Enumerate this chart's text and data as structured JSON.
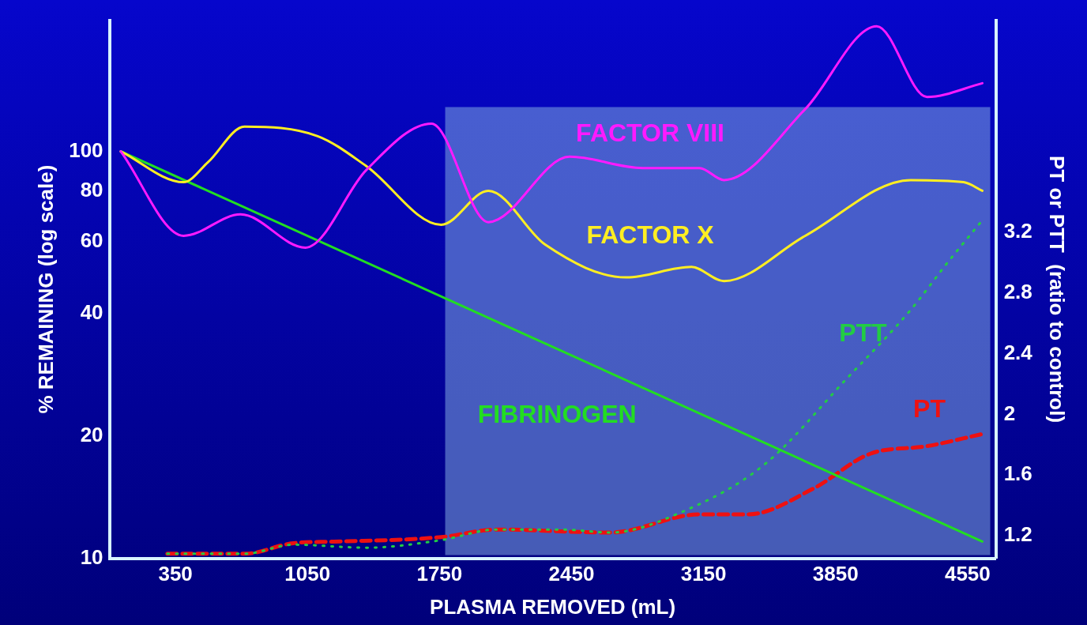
{
  "chart_data": {
    "type": "line",
    "xlabel": "PLASMA REMOVED (mL)",
    "ylabel": "% REMAINING (log scale)",
    "y2label": "PT or PTT  (ratio to control)",
    "xlim": [
      0,
      4700
    ],
    "xticks": [
      350,
      1050,
      1750,
      2450,
      3150,
      3850,
      4550
    ],
    "ylim": [
      10,
      210
    ],
    "yticks": [
      10,
      20,
      40,
      60,
      80,
      100
    ],
    "log": "y",
    "y2lim": [
      1.05,
      4.6
    ],
    "y2ticks": [
      1.2,
      1.6,
      2.0,
      2.4,
      2.8,
      3.2
    ],
    "grid": false,
    "legend": false,
    "marker": "none",
    "bands": [
      {
        "axis": "x",
        "from": 1780,
        "to": 4670,
        "color": "#7fa8e0"
      }
    ],
    "series": [
      {
        "name": "FACTOR VIII",
        "color": "#ff1aff",
        "line_style": "solid",
        "x": [
          60,
          393,
          695,
          1039,
          1362,
          1707,
          2009,
          2440,
          2827,
          3129,
          3258,
          3689,
          4068,
          4335,
          4628
        ],
        "values": [
          100,
          62,
          70,
          58,
          90,
          117,
          67,
          97,
          91,
          91,
          85,
          127,
          203,
          136,
          147
        ]
      },
      {
        "name": "FACTOR X",
        "color": "#ffee22",
        "line_style": "solid",
        "x": [
          60,
          393,
          522,
          716,
          1104,
          1362,
          1759,
          2009,
          2310,
          2741,
          3086,
          3258,
          3689,
          4249,
          4529,
          4628
        ],
        "values": [
          100,
          84,
          94,
          115,
          109,
          92,
          66,
          80,
          59,
          49,
          52,
          48,
          62,
          85,
          84,
          80
        ]
      },
      {
        "name": "FIBRINOGEN",
        "color": "#22dd22",
        "line_style": "solid",
        "x": [
          60,
          4628
        ],
        "values": [
          100,
          11
        ]
      },
      {
        "name": "PTT",
        "color": "#22cc44",
        "line_style": "dotted",
        "axis": "y2",
        "x": [
          307,
          716,
          975,
          1362,
          1759,
          2052,
          2397,
          2655,
          3043,
          3474,
          3905,
          4249,
          4443,
          4628
        ],
        "values": [
          1.08,
          1.08,
          1.14,
          1.12,
          1.17,
          1.24,
          1.24,
          1.22,
          1.36,
          1.67,
          2.23,
          2.69,
          3.0,
          3.28
        ]
      },
      {
        "name": "PT",
        "color": "#ee1111",
        "line_style": "dashed",
        "axis": "y2",
        "x": [
          307,
          716,
          975,
          1190,
          1759,
          2052,
          2655,
          3129,
          3387,
          3732,
          4034,
          4335,
          4628
        ],
        "values": [
          1.08,
          1.08,
          1.15,
          1.16,
          1.19,
          1.24,
          1.22,
          1.34,
          1.34,
          1.51,
          1.74,
          1.79,
          1.87
        ]
      }
    ]
  }
}
